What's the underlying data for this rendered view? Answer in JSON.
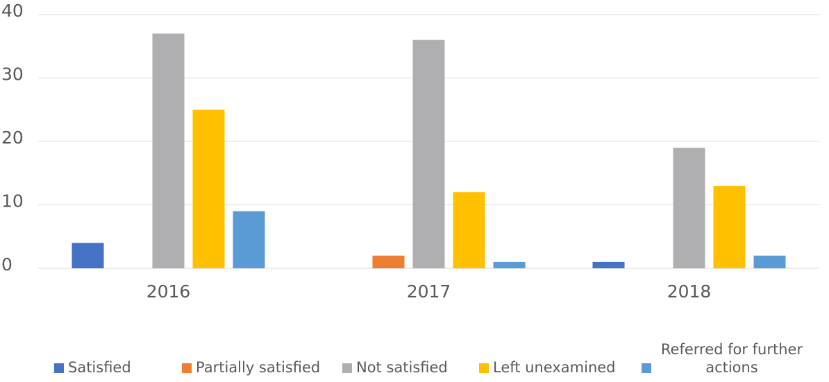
{
  "chart_data": {
    "type": "bar",
    "categories": [
      "2016",
      "2017",
      "2018"
    ],
    "series": [
      {
        "name": "Satisfied",
        "color": "#4472c4",
        "values": [
          4,
          0,
          1
        ]
      },
      {
        "name": "Partially satisfied",
        "color": "#ed7d31",
        "values": [
          0,
          2,
          0
        ]
      },
      {
        "name": "Not satisfied",
        "color": "#afafb1",
        "values": [
          37,
          36,
          19
        ]
      },
      {
        "name": "Left unexamined",
        "color": "#ffc000",
        "values": [
          25,
          12,
          13
        ]
      },
      {
        "name": "Referred for further actions",
        "color": "#5b9bd5",
        "values": [
          9,
          1,
          2
        ]
      }
    ],
    "ylim": [
      0,
      40
    ],
    "yticks": [
      0,
      10,
      20,
      30,
      40
    ],
    "grid": true,
    "legend": "bottom"
  }
}
